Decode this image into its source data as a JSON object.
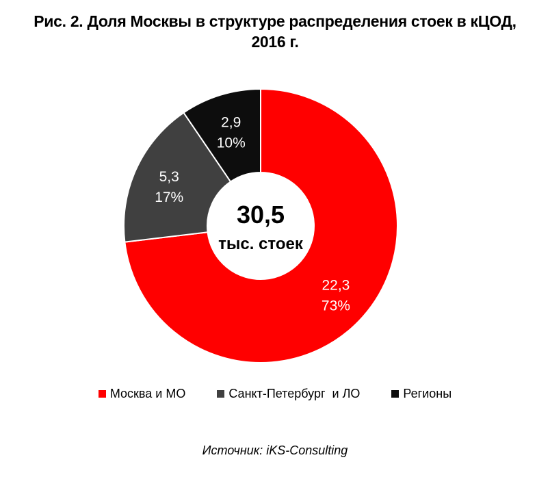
{
  "chart_data": {
    "type": "pie",
    "variant": "donut",
    "title_line1": "Рис. 2. Доля Москвы в структуре распределения стоек в кЦОД,",
    "title_line2": "2016 г.",
    "center_value": "30,5",
    "center_label": "тыс. стоек",
    "total": 30.5,
    "slices": [
      {
        "name": "Москва и МО",
        "value": 22.3,
        "value_label": "22,3",
        "percent_label": "73%",
        "color": "#ff0000"
      },
      {
        "name": "Санкт-Петербург  и ЛО",
        "value": 5.3,
        "value_label": "5,3",
        "percent_label": "17%",
        "color": "#404040"
      },
      {
        "name": "Регионы",
        "value": 2.9,
        "value_label": "2,9",
        "percent_label": "10%",
        "color": "#0d0d0d"
      }
    ],
    "legend_position": "bottom",
    "source": "Источник: iKS-Consulting"
  }
}
